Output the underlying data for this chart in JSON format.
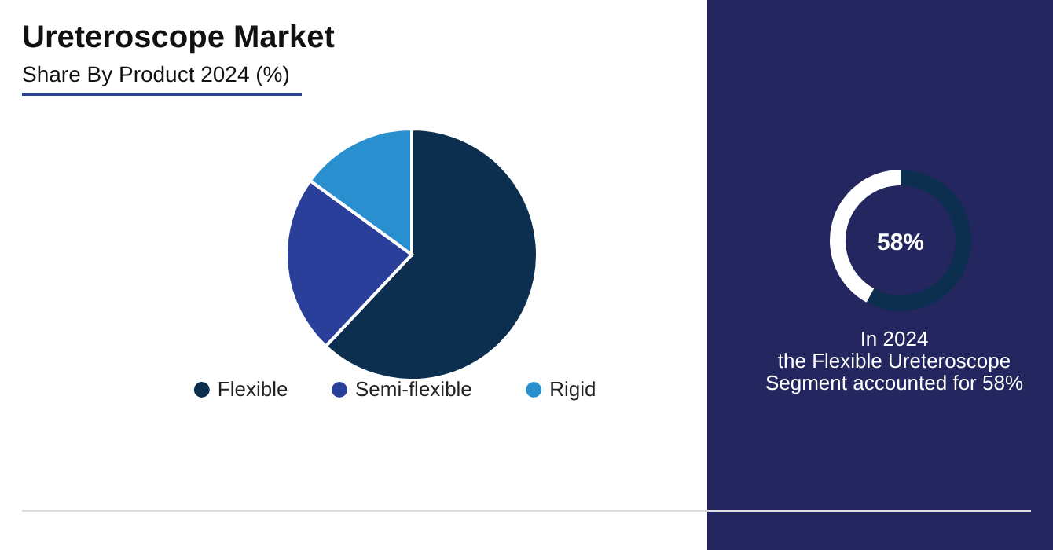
{
  "chart_data": [
    {
      "type": "pie",
      "title": "Ureteroscope Market",
      "subtitle": "Share By Product 2024 (%)",
      "categories": [
        "Flexible",
        "Semi-flexible",
        "Rigid"
      ],
      "values": [
        62,
        23,
        15
      ],
      "colors": [
        "#0c2f50",
        "#2a3f9a",
        "#2a8fcf"
      ],
      "legend": "bottom"
    },
    {
      "type": "donut",
      "categories": [
        null,
        null
      ],
      "values": [
        58,
        42
      ],
      "colors": [
        "#0d2f4f",
        "#ffffff"
      ],
      "annotations": [
        "58%",
        "In 2024\nthe Flexible Ureteroscope\nSegment accounted for 58%"
      ]
    }
  ]
}
